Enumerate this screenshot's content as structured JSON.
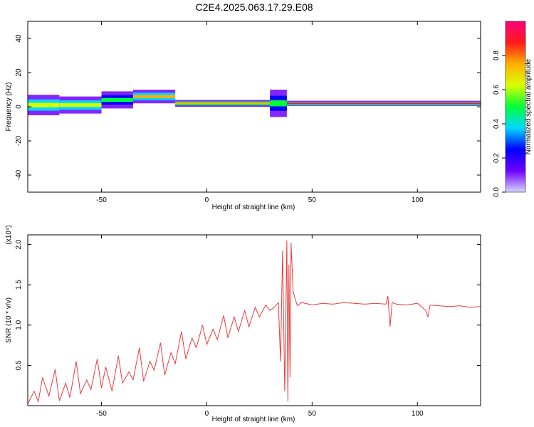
{
  "title": "C2E4.2025.063.17.29.E08",
  "colors": {
    "accent": "#e83b3b",
    "axis": "#000000",
    "background": "#ffffff"
  },
  "chart_data": [
    {
      "type": "heatmap",
      "xlabel": "Height of straight line (km)",
      "ylabel": "Frequency (Hz)",
      "xlim": [
        -85,
        130
      ],
      "ylim": [
        -50,
        50
      ],
      "xticks": [
        -50,
        0,
        50,
        100
      ],
      "yticks": [
        40,
        20,
        0,
        -20,
        -40
      ],
      "xtick_labels": [
        "-50",
        "0",
        "50",
        "100"
      ],
      "ytick_labels": [
        "40",
        "20",
        "0",
        "-20",
        "-40"
      ],
      "colorbar": {
        "label": "Normalized spectral amplitude",
        "ticks": [
          0.0,
          0.2,
          0.4,
          0.6,
          0.8
        ],
        "tick_labels": [
          "0.0",
          "0.2",
          "0.4",
          "0.6",
          "0.8"
        ],
        "colormap": [
          "#d7d7ff",
          "#6f00ff",
          "#0000ff",
          "#00d8ff",
          "#00ff3a",
          "#d7ff00",
          "#ffb000",
          "#ff1b1b",
          "#ff007f"
        ]
      },
      "bands": [
        {
          "x0": -85,
          "x1": -70,
          "f_center": 1,
          "f_half_width": 6,
          "amplitude": 0.65
        },
        {
          "x0": -70,
          "x1": -50,
          "f_center": 1,
          "f_half_width": 5,
          "amplitude": 0.6
        },
        {
          "x0": -50,
          "x1": -35,
          "f_center": 4,
          "f_half_width": 5,
          "amplitude": 0.55
        },
        {
          "x0": -35,
          "x1": -15,
          "f_center": 6,
          "f_half_width": 4,
          "amplitude": 0.7
        },
        {
          "x0": -15,
          "x1": 30,
          "f_center": 2,
          "f_half_width": 2,
          "amplitude": 0.8
        },
        {
          "x0": 30,
          "x1": 38,
          "f_center": 2,
          "f_half_width": 8,
          "amplitude": 0.45
        },
        {
          "x0": 38,
          "x1": 130,
          "f_center": 2,
          "f_half_width": 1.5,
          "amplitude": 0.95
        }
      ]
    },
    {
      "type": "line",
      "xlabel": "Height of straight line (km)",
      "ylabel": "SNR (10 * v/v)",
      "y_multiplier": "(x10⁴)",
      "xlim": [
        -85,
        130
      ],
      "ylim": [
        0.0,
        2.12
      ],
      "xticks": [
        -50,
        0,
        50,
        100
      ],
      "yticks": [
        0.5,
        1.0,
        1.5,
        2.0
      ],
      "xtick_labels": [
        "-50",
        "0",
        "50",
        "100"
      ],
      "ytick_labels": [
        "0.5",
        "1.0",
        "1.5",
        "2.0"
      ],
      "series": [
        {
          "color": "#e83b3b",
          "x": [
            -85,
            -82,
            -80,
            -78,
            -75,
            -72,
            -70,
            -67,
            -65,
            -62,
            -60,
            -57,
            -55,
            -52,
            -50,
            -48,
            -45,
            -42,
            -40,
            -37,
            -35,
            -32,
            -30,
            -27,
            -25,
            -22,
            -20,
            -17,
            -15,
            -12,
            -10,
            -7,
            -5,
            -2,
            0,
            3,
            5,
            8,
            10,
            13,
            15,
            18,
            20,
            23,
            25,
            28,
            30,
            32,
            34,
            35,
            36,
            37,
            38,
            38.5,
            39,
            39.5,
            40,
            41,
            42,
            43,
            45,
            50,
            55,
            60,
            65,
            70,
            75,
            80,
            85,
            86,
            87,
            88,
            90,
            95,
            100,
            104,
            105,
            106,
            110,
            115,
            120,
            125,
            130
          ],
          "y": [
            0.02,
            0.18,
            0.05,
            0.35,
            0.12,
            0.45,
            0.06,
            0.28,
            0.1,
            0.55,
            0.15,
            0.32,
            0.2,
            0.58,
            0.22,
            0.48,
            0.18,
            0.62,
            0.28,
            0.42,
            0.32,
            0.72,
            0.3,
            0.55,
            0.44,
            0.78,
            0.38,
            0.66,
            0.52,
            0.92,
            0.58,
            0.84,
            0.72,
            1.0,
            0.76,
            0.95,
            0.82,
            1.12,
            0.84,
            1.1,
            0.92,
            1.18,
            0.98,
            1.22,
            1.1,
            1.25,
            1.18,
            1.22,
            1.28,
            0.55,
            1.92,
            0.18,
            2.05,
            0.05,
            1.75,
            0.35,
            2.02,
            1.42,
            1.32,
            1.24,
            1.28,
            1.25,
            1.27,
            1.26,
            1.28,
            1.27,
            1.26,
            1.27,
            1.26,
            1.36,
            0.98,
            1.28,
            1.26,
            1.25,
            1.27,
            1.18,
            1.1,
            1.25,
            1.24,
            1.23,
            1.24,
            1.22,
            1.23
          ]
        }
      ]
    }
  ]
}
